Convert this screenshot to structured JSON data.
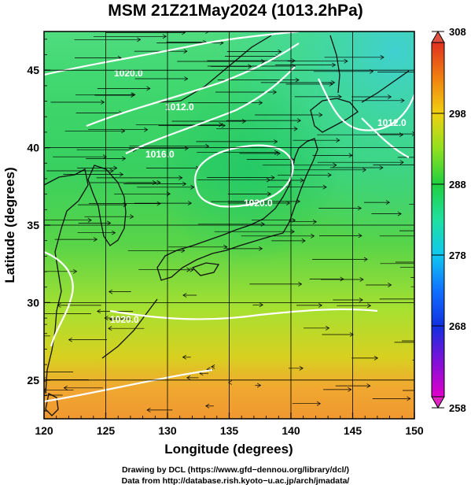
{
  "title": "MSM 21Z21May2024 (1013.2hPa)",
  "x_axis": {
    "label": "Longitude (degrees)",
    "range": [
      120,
      150
    ],
    "ticks": [
      120,
      125,
      130,
      135,
      140,
      145,
      150
    ]
  },
  "y_axis": {
    "label": "Latitude  (degrees)",
    "range": [
      22.5,
      47.5
    ],
    "ticks": [
      25,
      30,
      35,
      40,
      45
    ]
  },
  "colorbar": {
    "range": [
      258,
      308
    ],
    "ticks": [
      258,
      268,
      278,
      288,
      298,
      308
    ],
    "colors": [
      "#e000c8",
      "#6020e0",
      "#1040ff",
      "#10c8ff",
      "#20e8b0",
      "#20d040",
      "#a8e020",
      "#f0d010",
      "#f07010",
      "#e03020"
    ]
  },
  "field_colors": {
    "north_cold": "#48d8a8",
    "mid": "#30d060",
    "yellow_green": "#a8e030",
    "south_warm": "#f0a030",
    "land": "#1a1a1a"
  },
  "isobars": [
    {
      "label": "1020.0"
    },
    {
      "label": "1012.0"
    },
    {
      "label": "1016.0"
    },
    {
      "label": "1020.0"
    },
    {
      "label": "1012.0"
    },
    {
      "label": "1020.0"
    }
  ],
  "credits": {
    "line1": "Drawing by DCL (https://www.gfd−dennou.org/library/dcl/)",
    "line2": "Data from http://database.rish.kyoto−u.ac.jp/arch/jmadata/"
  }
}
